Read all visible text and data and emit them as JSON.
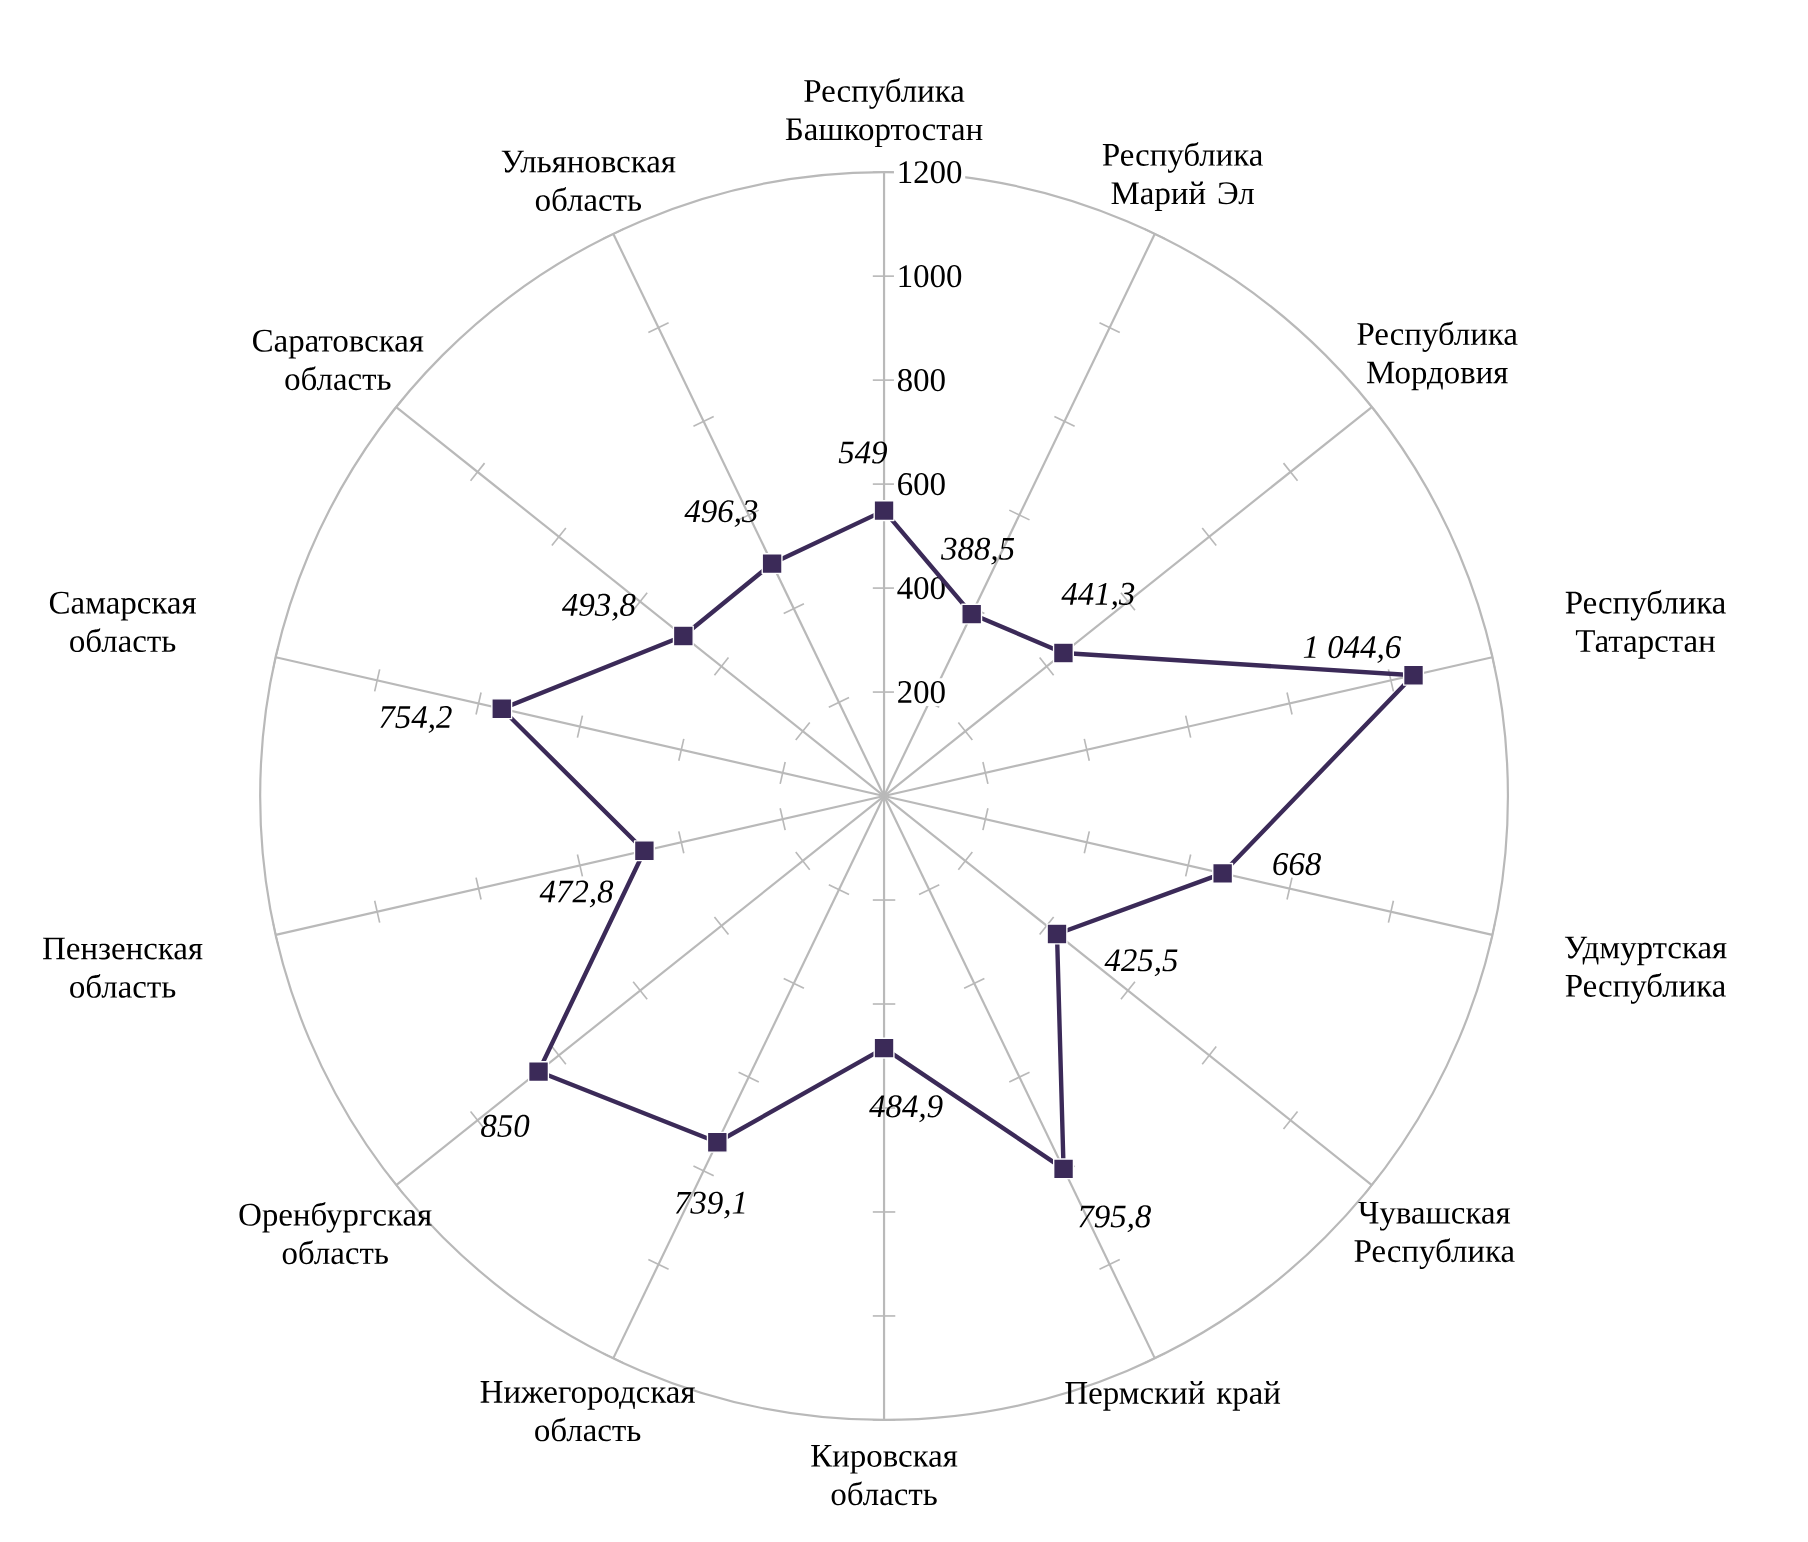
{
  "chart_data": {
    "type": "radar",
    "categories": [
      "Республика Башкортостан",
      "Республика Марий Эл",
      "Республика Мордовия",
      "Республика Татарстан",
      "Удмуртская Республика",
      "Чувашская Республика",
      "Пермский край",
      "Кировская область",
      "Нижегородская область",
      "Оренбургская область",
      "Пензенская область",
      "Самарская область",
      "Саратовская область",
      "Ульяновская область"
    ],
    "series": [
      {
        "color": "#3b2a58",
        "values": [
          549,
          388.5,
          441.3,
          1044.6,
          668,
          425.5,
          795.8,
          484.9,
          739.1,
          850,
          472.8,
          754.2,
          493.8,
          496.3
        ],
        "value_labels": [
          "549",
          "388,5",
          "441,3",
          "1 044,6",
          "668",
          "425,5",
          "795,8",
          "484,9",
          "739,1",
          "850",
          "472,8",
          "754,2",
          "493,8",
          "496,3"
        ]
      }
    ],
    "ylim": [
      0,
      1200
    ],
    "yticks": [
      200,
      400,
      600,
      800,
      1000,
      1200
    ],
    "grid": true,
    "marker": "square",
    "line_style": "solid"
  }
}
